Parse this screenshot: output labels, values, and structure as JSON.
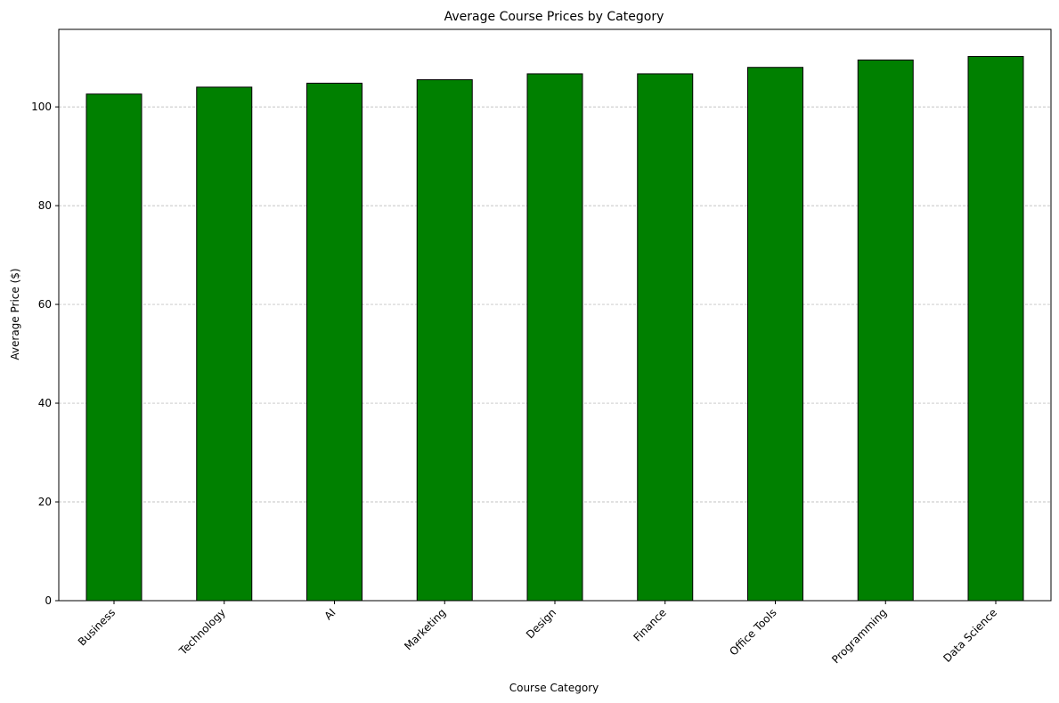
{
  "chart_data": {
    "type": "bar",
    "title": "Average Course Prices by Category",
    "xlabel": "Course Category",
    "ylabel": "Average Price ($)",
    "categories": [
      "Business",
      "Technology",
      "AI",
      "Marketing",
      "Design",
      "Finance",
      "Office Tools",
      "Programming",
      "Data Science"
    ],
    "values": [
      102.6,
      104.0,
      104.8,
      105.5,
      106.7,
      106.7,
      108.0,
      109.5,
      110.2
    ],
    "ylim": [
      0,
      115.7
    ],
    "yticks": [
      0,
      20,
      40,
      60,
      80,
      100
    ],
    "grid": "y-dashed",
    "colors": {
      "bar_fill": "#008000",
      "bar_edge": "#000000",
      "grid": "#b0b0b0",
      "axis": "#000000"
    }
  }
}
